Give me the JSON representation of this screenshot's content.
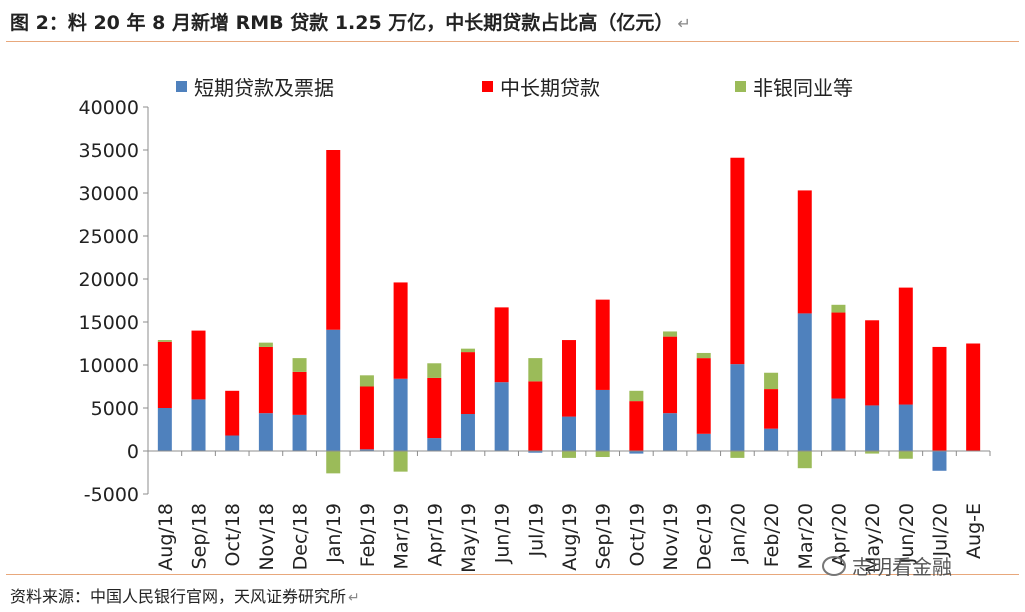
{
  "title": "图 2：料 20 年 8 月新增 RMB 贷款 1.25 万亿，中长期贷款占比高（亿元）",
  "source": "资料来源：中国人民银行官网，天风证券研究所",
  "watermark": "志明看金融",
  "chart_data": {
    "type": "bar",
    "stacked": true,
    "title": "",
    "xlabel": "",
    "ylabel": "",
    "ylim": [
      -5000,
      40000
    ],
    "yticks": [
      -5000,
      0,
      5000,
      10000,
      15000,
      20000,
      25000,
      30000,
      35000,
      40000
    ],
    "grid": false,
    "legend_position": "top",
    "categories": [
      "Aug/18",
      "Sep/18",
      "Oct/18",
      "Nov/18",
      "Dec/18",
      "Jan/19",
      "Feb/19",
      "Mar/19",
      "Apr/19",
      "May/19",
      "Jun/19",
      "Jul/19",
      "Aug/19",
      "Sep/19",
      "Oct/19",
      "Nov/19",
      "Dec/19",
      "Jan/20",
      "Feb/20",
      "Mar/20",
      "Apr/20",
      "May/20",
      "Jun/20",
      "Jul/20",
      "Aug-E"
    ],
    "series": [
      {
        "name": "短期贷款及票据",
        "color": "#4f81bd",
        "values": [
          5000,
          6000,
          1800,
          4400,
          4200,
          14100,
          200,
          8400,
          1500,
          4300,
          8000,
          -200,
          4000,
          7100,
          -300,
          4400,
          2000,
          10100,
          2600,
          16000,
          6100,
          5300,
          5400,
          -2300,
          0
        ]
      },
      {
        "name": "中长期贷款",
        "color": "#ff0000",
        "values": [
          7700,
          8000,
          5200,
          7700,
          5000,
          20900,
          7300,
          11200,
          7000,
          7200,
          8700,
          8100,
          8900,
          10500,
          5800,
          8900,
          8800,
          24000,
          4600,
          14300,
          10000,
          9900,
          13600,
          12100,
          12500
        ]
      },
      {
        "name": "非银同业等",
        "color": "#9bbb59",
        "values": [
          200,
          0,
          0,
          500,
          1600,
          -2600,
          1300,
          -2400,
          1700,
          400,
          0,
          2700,
          -800,
          -700,
          1200,
          600,
          600,
          -800,
          1900,
          -2000,
          900,
          -300,
          -900,
          0,
          0
        ]
      }
    ]
  }
}
